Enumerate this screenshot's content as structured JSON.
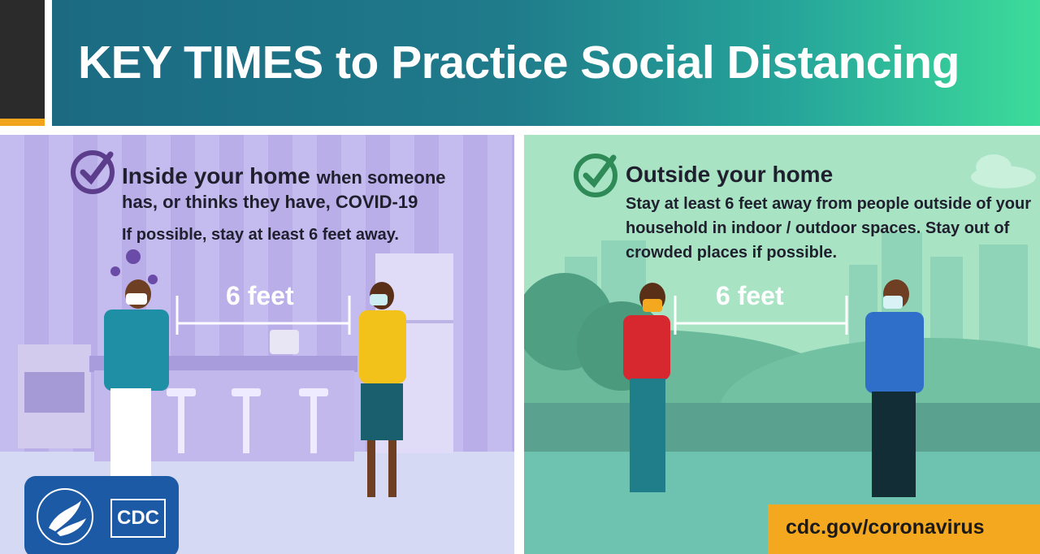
{
  "header": {
    "title": "KEY TIMES to Practice Social Distancing"
  },
  "left_panel": {
    "heading_main": "Inside your home",
    "heading_rest": "when someone",
    "heading_line2": "has, or thinks they have, COVID-19",
    "body": "If possible, stay at least 6 feet away.",
    "distance_label": "6 feet"
  },
  "right_panel": {
    "heading": "Outside your home",
    "body": "Stay at least 6 feet away from people outside of your household in indoor / outdoor spaces. Stay out of crowded places if possible.",
    "distance_label": "6 feet"
  },
  "footer": {
    "url": "cdc.gov/coronavirus",
    "logo_text": "CDC"
  },
  "colors": {
    "header_gradient_start": "#1b6a82",
    "header_gradient_end": "#3ddc9a",
    "left_panel_bg": "#b9aee8",
    "right_panel_bg": "#a8e3c4",
    "accent_orange": "#f3a81f",
    "check_purple": "#5b3d8c",
    "check_green": "#2e8b57",
    "cdc_blue": "#1d5aa6"
  },
  "icons": [
    "check-circle-icon",
    "virus-icon",
    "cloud-icon",
    "hhs-eagle-icon"
  ]
}
